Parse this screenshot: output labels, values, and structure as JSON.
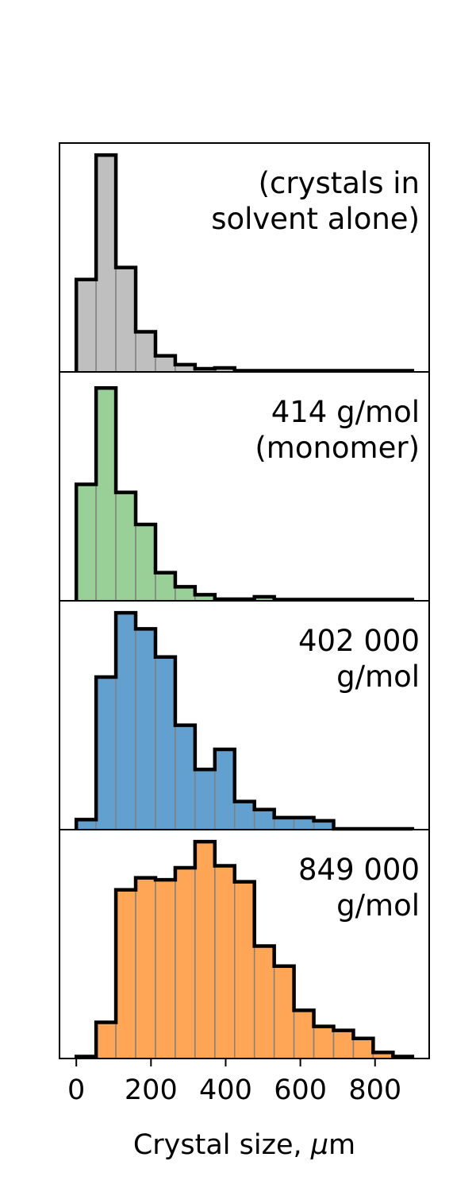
{
  "chart_data": {
    "type": "bar",
    "subtype": "stacked-histogram-panels",
    "xlabel": {
      "prefix": "Crystal size, ",
      "unit_symbol": "μ",
      "unit_suffix": "m"
    },
    "xlim": [
      -45,
      945
    ],
    "xticks": [
      0,
      200,
      400,
      800
    ],
    "xticks_all": [
      0,
      200,
      400,
      600,
      800
    ],
    "xtick_labels": [
      "0",
      "200",
      "400",
      "600",
      "800"
    ],
    "bin_edges": [
      0,
      53,
      106,
      159,
      212,
      265,
      318,
      371,
      424,
      477,
      530,
      583,
      636,
      689,
      742,
      795,
      848,
      900
    ],
    "y_axis_visible": false,
    "grid": false,
    "panels": [
      {
        "label": [
          "(crystals in",
          "solvent alone)"
        ],
        "color": "#bfbfbf",
        "ylim": [
          0,
          57
        ],
        "values": [
          23,
          54,
          26,
          10,
          4,
          1.8,
          0.8,
          1,
          0.3,
          0.3,
          0.3,
          0.3,
          0.3,
          0.3,
          0.3,
          0.3,
          0.3
        ]
      },
      {
        "label": [
          "414 g/mol",
          "(monomer)"
        ],
        "color": "#98d097",
        "ylim": [
          0,
          57
        ],
        "values": [
          29,
          53,
          27,
          19,
          7,
          3.5,
          1.5,
          0.4,
          0.4,
          1,
          0.3,
          0.3,
          0.3,
          0.3,
          0.3,
          0.3,
          0.3
        ]
      },
      {
        "label": [
          "402 000",
          "g/mol"
        ],
        "color": "#62a0cf",
        "ylim": [
          0,
          57
        ],
        "values": [
          2.5,
          38,
          54,
          50,
          43,
          26,
          15,
          20,
          7,
          5,
          3,
          3,
          2.2,
          0.2,
          0.2,
          0.2,
          0.2
        ]
      },
      {
        "label": [
          "849 000",
          "g/mol"
        ],
        "color": "#fea556",
        "ylim": [
          0,
          57
        ],
        "values": [
          0.5,
          9,
          42,
          45,
          44.5,
          47.5,
          54,
          48,
          44,
          28,
          23,
          12,
          8,
          7,
          5,
          1.5,
          0.5
        ]
      }
    ]
  }
}
